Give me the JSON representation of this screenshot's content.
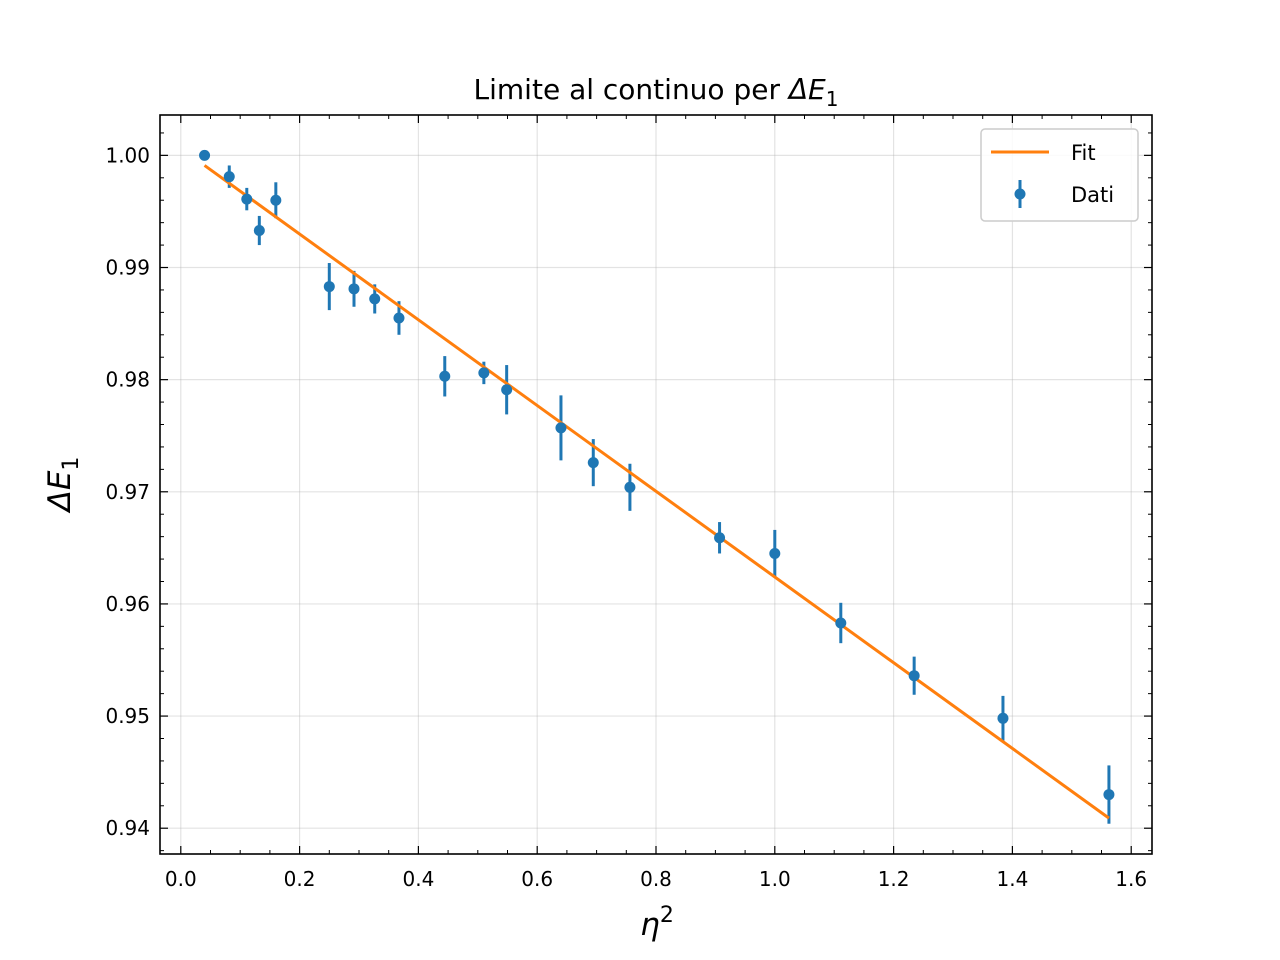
{
  "chart_data": {
    "type": "scatter",
    "title_text": "Limite al continuo per ",
    "title_symbol": "ΔE",
    "title_subscript": "1",
    "xlabel_symbol": "η",
    "xlabel_superscript": "2",
    "ylabel_symbol": "ΔE",
    "ylabel_subscript": "1",
    "xlim": [
      -0.035,
      1.635
    ],
    "ylim": [
      0.9377,
      1.0036
    ],
    "x_ticks": [
      0.0,
      0.2,
      0.4,
      0.6,
      0.8,
      1.0,
      1.2,
      1.4,
      1.6
    ],
    "x_tick_labels": [
      "0.0",
      "0.2",
      "0.4",
      "0.6",
      "0.8",
      "1.0",
      "1.2",
      "1.4",
      "1.6"
    ],
    "y_ticks": [
      0.94,
      0.95,
      0.96,
      0.97,
      0.98,
      0.99,
      1.0
    ],
    "y_tick_labels": [
      "0.94",
      "0.95",
      "0.96",
      "0.97",
      "0.98",
      "0.99",
      "1.00"
    ],
    "grid": true,
    "legend_position": "top-right",
    "legend": [
      "Fit",
      "Dati"
    ],
    "colors": {
      "data": "#1f77b4",
      "fit": "#ff7f0e"
    },
    "series": [
      {
        "name": "Dati",
        "kind": "errorbar",
        "x": [
          0.04,
          0.0816,
          0.1111,
          0.1322,
          0.16,
          0.25,
          0.2916,
          0.3265,
          0.3673,
          0.4444,
          0.5102,
          0.5486,
          0.64,
          0.6944,
          0.7561,
          0.907,
          1.0,
          1.1111,
          1.2346,
          1.3841,
          1.5625
        ],
        "y": [
          1.0,
          0.9981,
          0.9961,
          0.9933,
          0.996,
          0.9883,
          0.9881,
          0.9872,
          0.9855,
          0.9803,
          0.9806,
          0.9791,
          0.9757,
          0.9726,
          0.9704,
          0.9659,
          0.9645,
          0.9583,
          0.9536,
          0.9498,
          0.943
        ],
        "yerr": [
          0.0004,
          0.001,
          0.001,
          0.0013,
          0.0016,
          0.0021,
          0.0016,
          0.0013,
          0.0015,
          0.0018,
          0.001,
          0.0022,
          0.0029,
          0.0021,
          0.0021,
          0.0014,
          0.0021,
          0.0018,
          0.0017,
          0.002,
          0.0026
        ]
      },
      {
        "name": "Fit",
        "kind": "line",
        "x": [
          0.04,
          1.5625
        ],
        "y": [
          0.9991,
          0.9409
        ]
      }
    ]
  }
}
